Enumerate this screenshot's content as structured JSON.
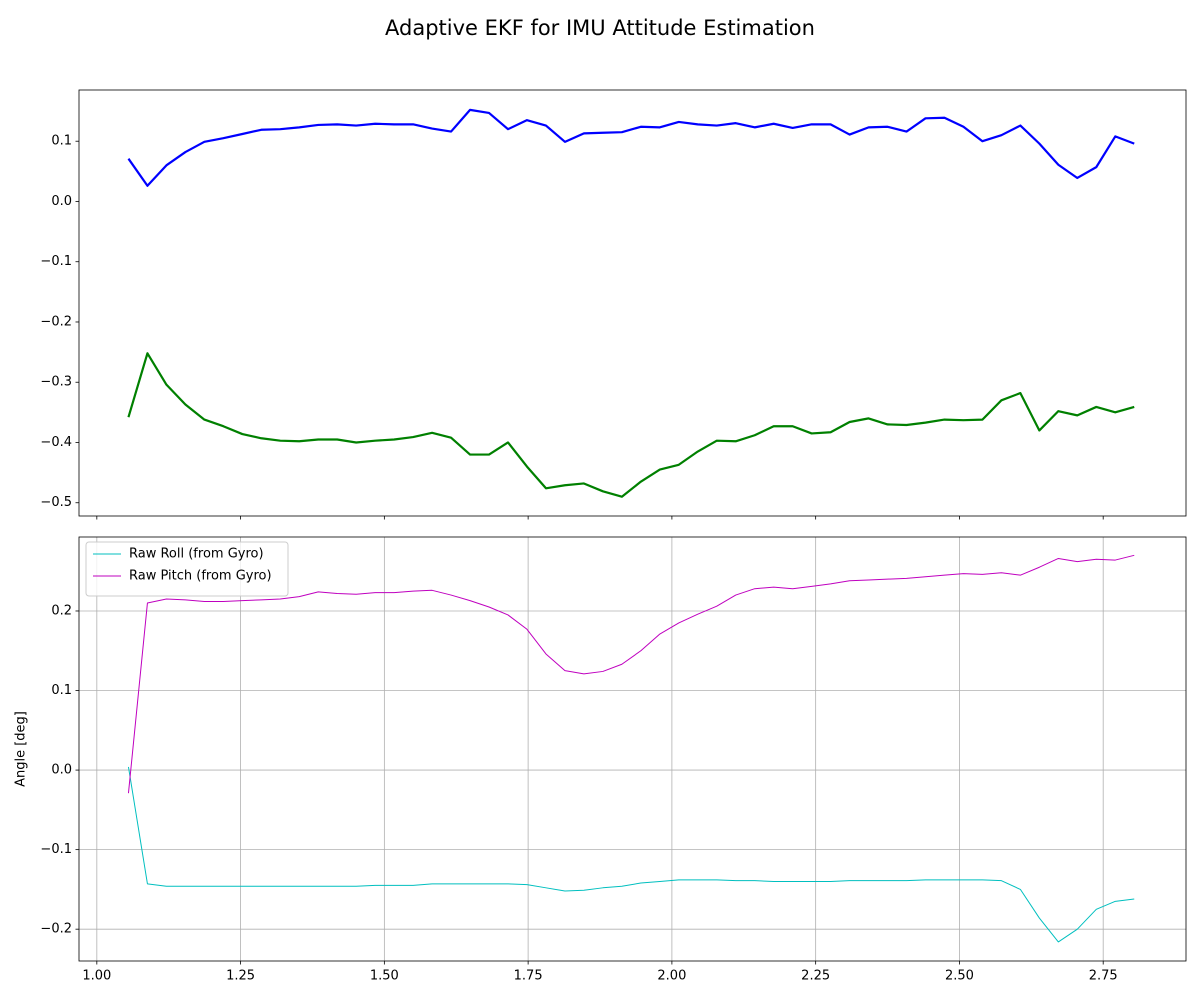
{
  "title": "Adaptive EKF for IMU Attitude Estimation",
  "chart_data": [
    {
      "type": "line",
      "x": [
        1.055,
        1.088,
        1.121,
        1.154,
        1.187,
        1.22,
        1.253,
        1.286,
        1.319,
        1.352,
        1.385,
        1.418,
        1.451,
        1.484,
        1.517,
        1.55,
        1.583,
        1.616,
        1.649,
        1.682,
        1.715,
        1.748,
        1.781,
        1.814,
        1.847,
        1.88,
        1.913,
        1.946,
        1.979,
        2.012,
        2.045,
        2.078,
        2.111,
        2.144,
        2.177,
        2.21,
        2.243,
        2.276,
        2.309,
        2.342,
        2.375,
        2.408,
        2.441,
        2.474,
        2.507,
        2.54,
        2.573,
        2.606,
        2.639,
        2.672,
        2.705,
        2.738,
        2.771,
        2.804
      ],
      "series": [
        {
          "color": "#0000ff",
          "values": [
            0.071,
            0.026,
            0.06,
            0.082,
            0.099,
            0.105,
            0.112,
            0.119,
            0.12,
            0.123,
            0.127,
            0.128,
            0.126,
            0.129,
            0.128,
            0.128,
            0.121,
            0.116,
            0.152,
            0.147,
            0.12,
            0.135,
            0.126,
            0.099,
            0.113,
            0.114,
            0.115,
            0.124,
            0.123,
            0.132,
            0.128,
            0.126,
            0.13,
            0.123,
            0.129,
            0.122,
            0.128,
            0.128,
            0.111,
            0.123,
            0.124,
            0.116,
            0.138,
            0.139,
            0.124,
            0.1,
            0.11,
            0.126,
            0.096,
            0.061,
            0.039,
            0.057,
            0.108,
            0.096
          ]
        },
        {
          "color": "#008000",
          "values": [
            -0.358,
            -0.252,
            -0.304,
            -0.337,
            -0.362,
            -0.373,
            -0.386,
            -0.393,
            -0.397,
            -0.398,
            -0.395,
            -0.395,
            -0.4,
            -0.397,
            -0.395,
            -0.391,
            -0.384,
            -0.392,
            -0.42,
            -0.42,
            -0.4,
            -0.44,
            -0.476,
            -0.471,
            -0.468,
            -0.481,
            -0.49,
            -0.465,
            -0.445,
            -0.437,
            -0.415,
            -0.397,
            -0.398,
            -0.388,
            -0.373,
            -0.373,
            -0.385,
            -0.383,
            -0.366,
            -0.36,
            -0.37,
            -0.371,
            -0.367,
            -0.362,
            -0.363,
            -0.362,
            -0.33,
            -0.318,
            -0.38,
            -0.348,
            -0.355,
            -0.341,
            -0.35,
            -0.341
          ]
        }
      ],
      "xlim": [
        0.969,
        2.894
      ],
      "ylim": [
        -0.522,
        0.185
      ],
      "xticks": [
        1,
        1.25,
        1.5,
        1.75,
        2,
        2.25,
        2.5,
        2.75
      ],
      "yticks": [
        0.1,
        {
          "value": 0,
          "label": "0.0"
        },
        {
          "value": -0.1,
          "label": "−0.1"
        },
        {
          "value": -0.2,
          "label": "−0.2"
        },
        {
          "value": -0.3,
          "label": "−0.3"
        },
        {
          "value": -0.4,
          "label": "−0.4"
        },
        {
          "value": -0.5,
          "label": "−0.5"
        }
      ],
      "grid": false,
      "line_width": 2.2
    },
    {
      "type": "line",
      "ylabel": "Angle [deg]",
      "x": [
        1.055,
        1.088,
        1.121,
        1.154,
        1.187,
        1.22,
        1.253,
        1.286,
        1.319,
        1.352,
        1.385,
        1.418,
        1.451,
        1.484,
        1.517,
        1.55,
        1.583,
        1.616,
        1.649,
        1.682,
        1.715,
        1.748,
        1.781,
        1.814,
        1.847,
        1.88,
        1.913,
        1.946,
        1.979,
        2.012,
        2.045,
        2.078,
        2.111,
        2.144,
        2.177,
        2.21,
        2.243,
        2.276,
        2.309,
        2.342,
        2.375,
        2.408,
        2.441,
        2.474,
        2.507,
        2.54,
        2.573,
        2.606,
        2.639,
        2.672,
        2.705,
        2.738,
        2.771,
        2.804
      ],
      "series": [
        {
          "name": "Raw Roll (from Gyro)",
          "color": "#00bfbf",
          "values": [
            0.004,
            -0.143,
            -0.146,
            -0.146,
            -0.146,
            -0.146,
            -0.146,
            -0.146,
            -0.146,
            -0.146,
            -0.146,
            -0.146,
            -0.146,
            -0.145,
            -0.145,
            -0.145,
            -0.143,
            -0.143,
            -0.143,
            -0.143,
            -0.143,
            -0.144,
            -0.148,
            -0.152,
            -0.151,
            -0.148,
            -0.146,
            -0.142,
            -0.14,
            -0.138,
            -0.138,
            -0.138,
            -0.139,
            -0.139,
            -0.14,
            -0.14,
            -0.14,
            -0.14,
            -0.139,
            -0.139,
            -0.139,
            -0.139,
            -0.138,
            -0.138,
            -0.138,
            -0.138,
            -0.139,
            -0.15,
            -0.186,
            -0.216,
            -0.2,
            -0.175,
            -0.165,
            -0.162
          ]
        },
        {
          "name": "Raw Pitch (from Gyro)",
          "color": "#bf00bf",
          "values": [
            -0.029,
            0.21,
            0.215,
            0.214,
            0.212,
            0.212,
            0.213,
            0.214,
            0.215,
            0.218,
            0.224,
            0.222,
            0.221,
            0.223,
            0.223,
            0.225,
            0.226,
            0.22,
            0.213,
            0.205,
            0.195,
            0.177,
            0.146,
            0.125,
            0.121,
            0.124,
            0.133,
            0.15,
            0.171,
            0.185,
            0.196,
            0.206,
            0.22,
            0.228,
            0.23,
            0.228,
            0.231,
            0.234,
            0.238,
            0.239,
            0.24,
            0.241,
            0.243,
            0.245,
            0.247,
            0.246,
            0.248,
            0.245,
            0.255,
            0.266,
            0.262,
            0.265,
            0.264,
            0.27
          ]
        }
      ],
      "xlim": [
        0.969,
        2.894
      ],
      "ylim": [
        -0.24,
        0.293
      ],
      "xticks": [
        {
          "value": 1,
          "label": "1.00"
        },
        {
          "value": 1.25,
          "label": "1.25"
        },
        {
          "value": 1.5,
          "label": "1.50"
        },
        {
          "value": 1.75,
          "label": "1.75"
        },
        {
          "value": 2,
          "label": "2.00"
        },
        {
          "value": 2.25,
          "label": "2.25"
        },
        {
          "value": 2.5,
          "label": "2.50"
        },
        {
          "value": 2.75,
          "label": "2.75"
        }
      ],
      "yticks": [
        {
          "value": -0.2,
          "label": "−0.2"
        },
        {
          "value": -0.1,
          "label": "−0.1"
        },
        {
          "value": 0,
          "label": "0.0"
        },
        0.1,
        0.2
      ],
      "grid": true,
      "legend": "upper left",
      "line_width": 1
    }
  ]
}
